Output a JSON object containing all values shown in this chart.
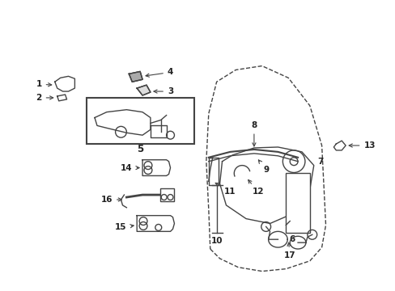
{
  "background_color": "#ffffff",
  "line_color": "#444444",
  "text_color": "#222222",
  "fig_width": 4.89,
  "fig_height": 3.6,
  "dpi": 100
}
